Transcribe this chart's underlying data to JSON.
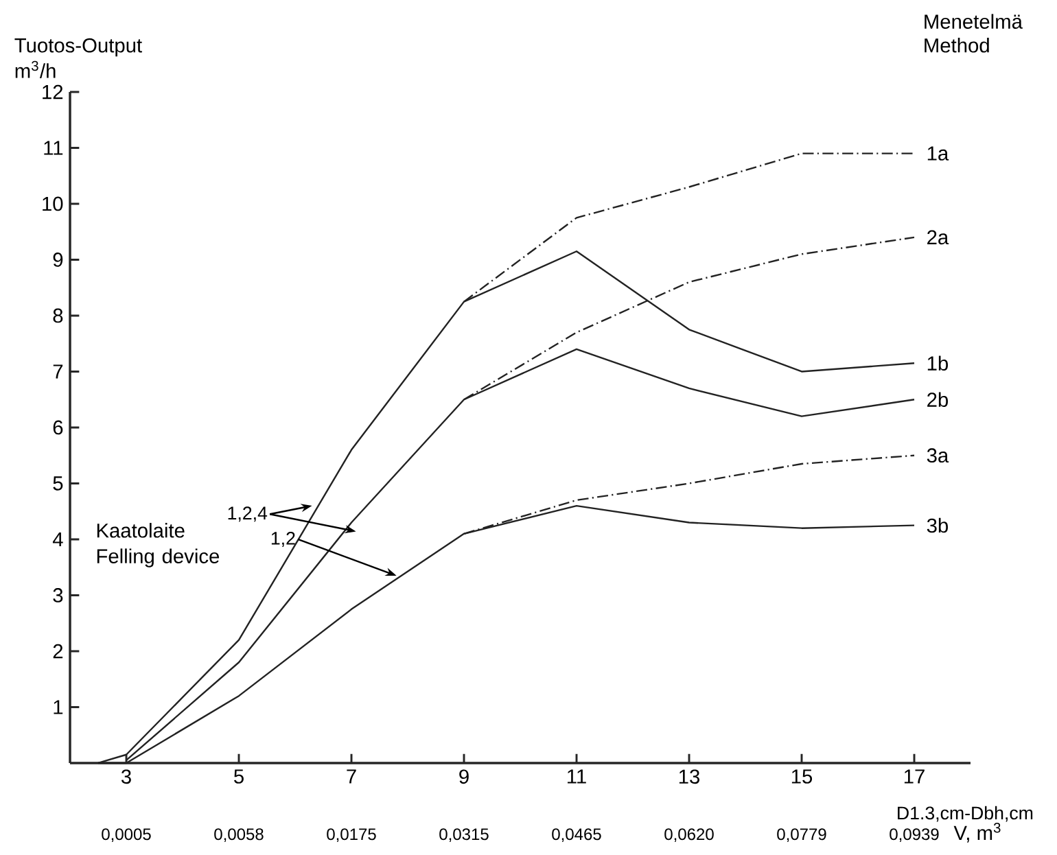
{
  "chart_data": {
    "type": "line",
    "ylabel": "Tuotos-Output m$^{3}$/h",
    "xlabel": "D1.3,cm-Dbh,cm",
    "legend_title": "Menetelmä Method",
    "xlim": [
      2,
      18
    ],
    "xticks": [
      3,
      5,
      7,
      9,
      11,
      13,
      15,
      17
    ],
    "ylim": [
      0,
      12
    ],
    "yticks": [
      1,
      2,
      3,
      4,
      5,
      6,
      7,
      8,
      9,
      10,
      11,
      12
    ],
    "series": [
      {
        "name": "1a",
        "color": "#222222",
        "line_style": "dashed",
        "x": [
          9,
          11,
          13,
          15,
          17
        ],
        "values": [
          8.25,
          9.75,
          10.3,
          10.9,
          10.9
        ]
      },
      {
        "name": "2a",
        "color": "#222222",
        "line_style": "dashed",
        "x": [
          9,
          11,
          13,
          15,
          17
        ],
        "values": [
          6.5,
          7.7,
          8.6,
          9.1,
          9.4
        ]
      },
      {
        "name": "1b",
        "color": "#222222",
        "line_style": "solid",
        "x": [
          2.5,
          3,
          5,
          7,
          9,
          11,
          13,
          15,
          17
        ],
        "values": [
          0,
          0.15,
          2.2,
          5.6,
          8.25,
          9.15,
          7.75,
          7.0,
          7.15
        ]
      },
      {
        "name": "2b",
        "color": "#222222",
        "line_style": "solid",
        "x": [
          3,
          5,
          7,
          9,
          11,
          13,
          15,
          17
        ],
        "values": [
          0.05,
          1.8,
          4.3,
          6.5,
          7.4,
          6.7,
          6.2,
          6.5
        ]
      },
      {
        "name": "3a",
        "color": "#222222",
        "line_style": "dashed",
        "x": [
          9,
          11,
          13,
          15,
          17
        ],
        "values": [
          4.1,
          4.7,
          5.0,
          5.35,
          5.5
        ]
      },
      {
        "name": "3b",
        "color": "#222222",
        "line_style": "solid",
        "x": [
          2.5,
          3,
          5,
          7,
          9,
          11,
          13,
          15,
          17
        ],
        "values": [
          0,
          0,
          1.2,
          2.75,
          4.1,
          4.6,
          4.3,
          4.2,
          4.25
        ]
      }
    ],
    "annotations": [
      {
        "text": "1,2,4",
        "x": 6.3,
        "y": 4.6
      },
      {
        "text": "1,2",
        "x": 7.8,
        "y": 3.35
      },
      "Kaatolaite Felling device",
      "0,0005",
      "0,0058",
      "0,0175",
      "0,0315",
      "0,0465",
      "0,0620",
      "0,0779",
      "0,0939",
      "V, m$^{3}$"
    ],
    "grid": false
  }
}
